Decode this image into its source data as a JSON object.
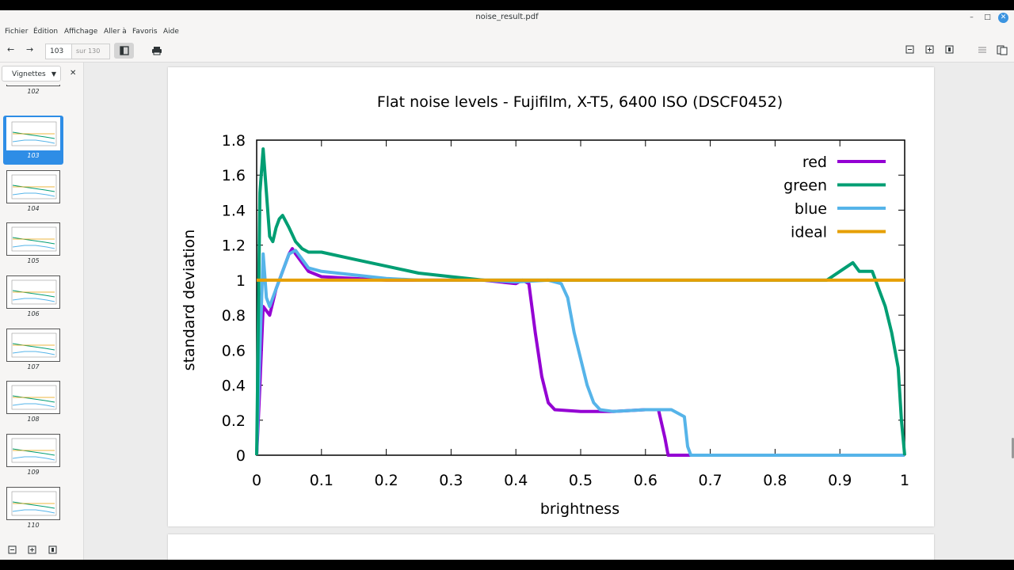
{
  "window": {
    "title": "noise_result.pdf",
    "minimize": "–",
    "maximize": "□",
    "close": "✕"
  },
  "menu": [
    "Fichier",
    "Édition",
    "Affichage",
    "Aller à",
    "Favoris",
    "Aide"
  ],
  "toolbar": {
    "back_icon": "arrow-left-icon",
    "forward_icon": "arrow-right-icon",
    "page_value": "103",
    "page_total": "sur 130",
    "print_icon": "printer-icon"
  },
  "sidebar": {
    "mode_label": "Vignettes",
    "thumbnails": [
      {
        "num": "102",
        "selected": false
      },
      {
        "num": "103",
        "selected": true
      },
      {
        "num": "104",
        "selected": false
      },
      {
        "num": "105",
        "selected": false
      },
      {
        "num": "106",
        "selected": false
      },
      {
        "num": "107",
        "selected": false
      },
      {
        "num": "108",
        "selected": false
      },
      {
        "num": "109",
        "selected": false
      },
      {
        "num": "110",
        "selected": false
      }
    ]
  },
  "chart_data": {
    "type": "line",
    "title": "Flat noise levels - Fujifilm, X-T5, 6400 ISO (DSCF0452)",
    "xlabel": "brightness",
    "ylabel": "standard deviation",
    "xlim": [
      0,
      1
    ],
    "ylim": [
      0,
      1.8
    ],
    "xticks": [
      "0",
      "0.1",
      "0.2",
      "0.3",
      "0.4",
      "0.5",
      "0.6",
      "0.7",
      "0.8",
      "0.9",
      "1"
    ],
    "yticks": [
      "0",
      "0.2",
      "0.4",
      "0.6",
      "0.8",
      "1",
      "1.2",
      "1.4",
      "1.6",
      "1.8"
    ],
    "legend_position": "top-right",
    "series": [
      {
        "name": "red",
        "color": "#9400d3",
        "points": [
          [
            0,
            0
          ],
          [
            0.005,
            0.4
          ],
          [
            0.01,
            0.85
          ],
          [
            0.02,
            0.8
          ],
          [
            0.03,
            0.95
          ],
          [
            0.04,
            1.05
          ],
          [
            0.05,
            1.15
          ],
          [
            0.055,
            1.18
          ],
          [
            0.06,
            1.15
          ],
          [
            0.07,
            1.1
          ],
          [
            0.08,
            1.05
          ],
          [
            0.1,
            1.02
          ],
          [
            0.15,
            1.01
          ],
          [
            0.2,
            1.0
          ],
          [
            0.25,
            1.0
          ],
          [
            0.3,
            1.0
          ],
          [
            0.35,
            1.0
          ],
          [
            0.4,
            0.98
          ],
          [
            0.41,
            1.0
          ],
          [
            0.42,
            0.98
          ],
          [
            0.43,
            0.7
          ],
          [
            0.44,
            0.45
          ],
          [
            0.45,
            0.3
          ],
          [
            0.46,
            0.26
          ],
          [
            0.5,
            0.25
          ],
          [
            0.55,
            0.25
          ],
          [
            0.6,
            0.26
          ],
          [
            0.62,
            0.26
          ],
          [
            0.63,
            0.1
          ],
          [
            0.635,
            0
          ],
          [
            0.7,
            0
          ],
          [
            0.8,
            0
          ],
          [
            0.9,
            0
          ],
          [
            1,
            0
          ]
        ]
      },
      {
        "name": "green",
        "color": "#009e73",
        "points": [
          [
            0,
            0
          ],
          [
            0.005,
            1.5
          ],
          [
            0.01,
            1.75
          ],
          [
            0.015,
            1.5
          ],
          [
            0.02,
            1.25
          ],
          [
            0.025,
            1.22
          ],
          [
            0.03,
            1.3
          ],
          [
            0.035,
            1.35
          ],
          [
            0.04,
            1.37
          ],
          [
            0.05,
            1.3
          ],
          [
            0.06,
            1.22
          ],
          [
            0.07,
            1.18
          ],
          [
            0.08,
            1.16
          ],
          [
            0.1,
            1.16
          ],
          [
            0.15,
            1.12
          ],
          [
            0.2,
            1.08
          ],
          [
            0.25,
            1.04
          ],
          [
            0.3,
            1.02
          ],
          [
            0.35,
            1.0
          ],
          [
            0.4,
            1.0
          ],
          [
            0.45,
            1.0
          ],
          [
            0.5,
            1.0
          ],
          [
            0.6,
            1.0
          ],
          [
            0.7,
            1.0
          ],
          [
            0.8,
            1.0
          ],
          [
            0.85,
            1.0
          ],
          [
            0.88,
            1.0
          ],
          [
            0.9,
            1.05
          ],
          [
            0.92,
            1.1
          ],
          [
            0.93,
            1.05
          ],
          [
            0.95,
            1.05
          ],
          [
            0.96,
            0.95
          ],
          [
            0.97,
            0.85
          ],
          [
            0.98,
            0.7
          ],
          [
            0.99,
            0.5
          ],
          [
            0.995,
            0.2
          ],
          [
            1,
            0
          ]
        ]
      },
      {
        "name": "blue",
        "color": "#56b4e9",
        "points": [
          [
            0,
            0
          ],
          [
            0.005,
            0.6
          ],
          [
            0.01,
            1.15
          ],
          [
            0.015,
            0.9
          ],
          [
            0.02,
            0.85
          ],
          [
            0.03,
            0.95
          ],
          [
            0.04,
            1.05
          ],
          [
            0.05,
            1.15
          ],
          [
            0.06,
            1.17
          ],
          [
            0.07,
            1.12
          ],
          [
            0.08,
            1.07
          ],
          [
            0.1,
            1.05
          ],
          [
            0.15,
            1.03
          ],
          [
            0.2,
            1.01
          ],
          [
            0.25,
            1.0
          ],
          [
            0.3,
            1.0
          ],
          [
            0.35,
            1.0
          ],
          [
            0.4,
            0.99
          ],
          [
            0.45,
            1.0
          ],
          [
            0.47,
            0.98
          ],
          [
            0.48,
            0.9
          ],
          [
            0.49,
            0.7
          ],
          [
            0.5,
            0.55
          ],
          [
            0.51,
            0.4
          ],
          [
            0.52,
            0.3
          ],
          [
            0.53,
            0.26
          ],
          [
            0.55,
            0.25
          ],
          [
            0.6,
            0.26
          ],
          [
            0.64,
            0.26
          ],
          [
            0.66,
            0.22
          ],
          [
            0.665,
            0.05
          ],
          [
            0.67,
            0
          ],
          [
            0.8,
            0
          ],
          [
            0.9,
            0
          ],
          [
            1,
            0
          ]
        ]
      },
      {
        "name": "ideal",
        "color": "#e69f00",
        "points": [
          [
            0,
            1
          ],
          [
            1,
            1
          ]
        ]
      }
    ]
  }
}
